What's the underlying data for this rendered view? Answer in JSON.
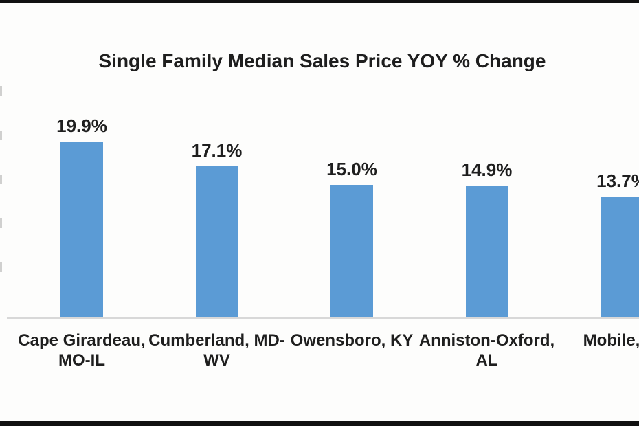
{
  "chart_data": {
    "type": "bar",
    "title": "Single Family Median Sales Price YOY % Change",
    "categories": [
      [
        "Cape Girardeau,",
        "MO-IL"
      ],
      [
        "Cumberland, MD-",
        "WV"
      ],
      [
        "Owensboro, KY"
      ],
      [
        "Anniston-Oxford,",
        "AL"
      ],
      [
        "Mobile,"
      ]
    ],
    "values": [
      19.9,
      17.1,
      15.0,
      14.9,
      13.7
    ],
    "data_labels": [
      "19.9%",
      "17.1%",
      "15.0%",
      "14.9%",
      "13.7%"
    ],
    "xlabel": "",
    "ylabel": "",
    "ylim": [
      0,
      22
    ],
    "grid": false,
    "legend": false,
    "bar_color": "#5b9bd5",
    "axis_line_color": "#d8d8d8",
    "text_color": "#1e1e1e",
    "frame_border_color": "#111111",
    "background_color": "#fdfdfc"
  }
}
